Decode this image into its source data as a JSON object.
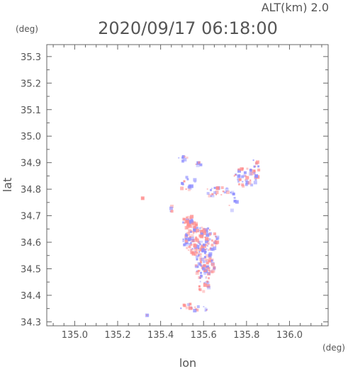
{
  "chart_data": {
    "type": "heatmap",
    "title": "2020/09/17 06:18:00",
    "subtitle": "ALT(km) 2.0",
    "xlabel": "lon",
    "ylabel": "lat",
    "xunit": "(deg)",
    "yunit": "(deg)",
    "xlim": [
      134.87,
      136.18
    ],
    "ylim": [
      34.285,
      35.345
    ],
    "xticks": [
      "135.0",
      "135.2",
      "135.4",
      "135.6",
      "135.8",
      "136.0"
    ],
    "yticks": [
      "34.3",
      "34.4",
      "34.5",
      "34.6",
      "34.7",
      "34.8",
      "34.9",
      "35.0",
      "35.1",
      "35.2",
      "35.3"
    ],
    "grid": false,
    "colors": {
      "positive": "#ff8f8f",
      "negative": "#8f8fff",
      "axis": "#666666",
      "text": "#555555"
    },
    "clusters": [
      {
        "lon": 135.58,
        "lat": 34.61,
        "rlon": 0.08,
        "rlat": 0.055,
        "n": 150
      },
      {
        "lon": 135.6,
        "lat": 34.52,
        "rlon": 0.045,
        "rlat": 0.06,
        "n": 90
      },
      {
        "lon": 135.53,
        "lat": 34.68,
        "rlon": 0.035,
        "rlat": 0.025,
        "n": 35
      },
      {
        "lon": 135.79,
        "lat": 34.85,
        "rlon": 0.06,
        "rlat": 0.035,
        "n": 45
      },
      {
        "lon": 135.66,
        "lat": 34.8,
        "rlon": 0.05,
        "rlat": 0.03,
        "n": 25
      },
      {
        "lon": 135.5,
        "lat": 34.92,
        "rlon": 0.02,
        "rlat": 0.01,
        "n": 10
      },
      {
        "lon": 135.57,
        "lat": 34.9,
        "rlon": 0.015,
        "rlat": 0.01,
        "n": 6
      },
      {
        "lon": 135.52,
        "lat": 34.83,
        "rlon": 0.05,
        "rlat": 0.03,
        "n": 14
      },
      {
        "lon": 135.57,
        "lat": 34.36,
        "rlon": 0.09,
        "rlat": 0.015,
        "n": 22
      },
      {
        "lon": 135.59,
        "lat": 34.44,
        "rlon": 0.03,
        "rlat": 0.03,
        "n": 14
      },
      {
        "lon": 135.84,
        "lat": 34.89,
        "rlon": 0.015,
        "rlat": 0.04,
        "n": 10
      },
      {
        "lon": 135.73,
        "lat": 34.76,
        "rlon": 0.02,
        "rlat": 0.04,
        "n": 8
      },
      {
        "lon": 135.33,
        "lat": 34.33,
        "rlon": 0.01,
        "rlat": 0.006,
        "n": 3
      },
      {
        "lon": 135.31,
        "lat": 34.77,
        "rlon": 0.008,
        "rlat": 0.006,
        "n": 2
      },
      {
        "lon": 135.45,
        "lat": 34.73,
        "rlon": 0.01,
        "rlat": 0.02,
        "n": 4
      }
    ]
  }
}
